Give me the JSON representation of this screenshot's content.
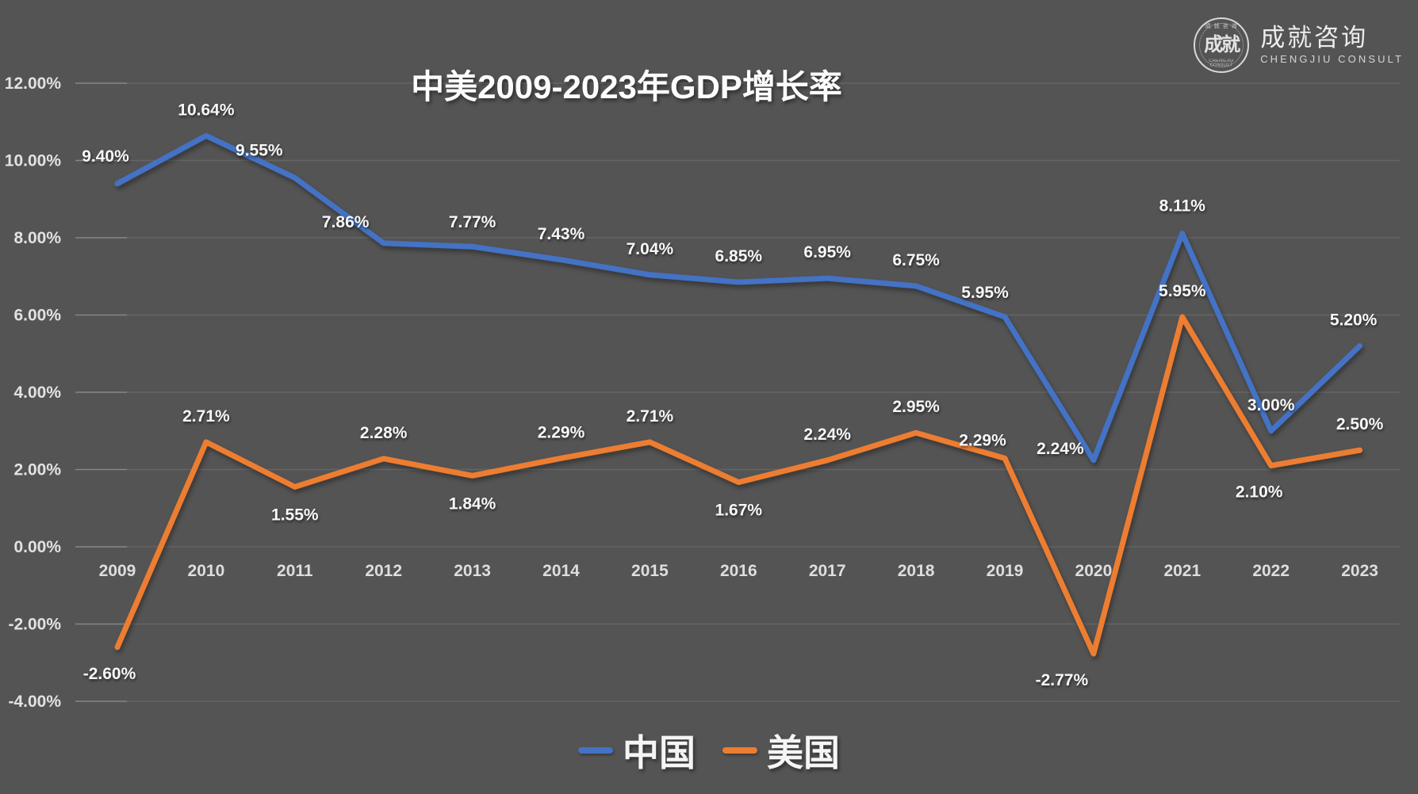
{
  "logo": {
    "seal_center": "成就",
    "seal_ring_top": "成 就 咨 询",
    "seal_ring_bottom": "CHENGJIU CONSULT",
    "name_cn": "成就咨询",
    "name_en": "CHENGJIU CONSULT"
  },
  "chart_data": {
    "type": "line",
    "title": "中美2009-2023年GDP增长率",
    "categories": [
      "2009",
      "2010",
      "2011",
      "2012",
      "2013",
      "2014",
      "2015",
      "2016",
      "2017",
      "2018",
      "2019",
      "2020",
      "2021",
      "2022",
      "2023"
    ],
    "xlabel": "",
    "ylabel": "",
    "ylim": [
      -4,
      12
    ],
    "y_tick_values": [
      12,
      10,
      8,
      6,
      4,
      2,
      0,
      -2,
      -4
    ],
    "y_tick_labels": [
      "12.00%",
      "10.00%",
      "8.00%",
      "6.00%",
      "4.00%",
      "2.00%",
      "0.00%",
      "-2.00%",
      "-4.00%"
    ],
    "grid": true,
    "legend_position": "bottom-center",
    "background_color": "#545454",
    "series": [
      {
        "name": "中国",
        "color": "#4472C4",
        "values": [
          9.4,
          10.64,
          9.55,
          7.86,
          7.77,
          7.43,
          7.04,
          6.85,
          6.95,
          6.75,
          5.95,
          2.24,
          8.11,
          3.0,
          5.2
        ],
        "labels": [
          "9.40%",
          "10.64%",
          "9.55%",
          "7.86%",
          "7.77%",
          "7.43%",
          "7.04%",
          "6.85%",
          "6.95%",
          "6.75%",
          "5.95%",
          "2.24%",
          "8.11%",
          "3.00%",
          "5.20%"
        ],
        "label_offsets": [
          [
            -15,
            -28
          ],
          [
            0,
            -26
          ],
          [
            -45,
            -28
          ],
          [
            -48,
            -20
          ],
          [
            0,
            -24
          ],
          [
            0,
            -26
          ],
          [
            0,
            -26
          ],
          [
            0,
            -26
          ],
          [
            0,
            -26
          ],
          [
            0,
            -26
          ],
          [
            -25,
            -24
          ],
          [
            -42,
            -8
          ],
          [
            0,
            -28
          ],
          [
            0,
            -26
          ],
          [
            -8,
            -26
          ]
        ]
      },
      {
        "name": "美国",
        "color": "#ED7D31",
        "values": [
          -2.6,
          2.71,
          1.55,
          2.28,
          1.84,
          2.29,
          2.71,
          1.67,
          2.24,
          2.95,
          2.29,
          -2.77,
          5.95,
          2.1,
          2.5
        ],
        "labels": [
          "-2.60%",
          "2.71%",
          "1.55%",
          "2.28%",
          "1.84%",
          "2.29%",
          "2.71%",
          "1.67%",
          "2.24%",
          "2.95%",
          "2.29%",
          "-2.77%",
          "5.95%",
          "2.10%",
          "2.50%"
        ],
        "label_offsets": [
          [
            -10,
            24
          ],
          [
            0,
            -26
          ],
          [
            0,
            26
          ],
          [
            0,
            -26
          ],
          [
            0,
            26
          ],
          [
            0,
            -26
          ],
          [
            0,
            -26
          ],
          [
            0,
            26
          ],
          [
            0,
            -26
          ],
          [
            0,
            -26
          ],
          [
            -28,
            -16
          ],
          [
            -40,
            24
          ],
          [
            0,
            -26
          ],
          [
            -15,
            24
          ],
          [
            0,
            -26
          ]
        ]
      }
    ]
  }
}
